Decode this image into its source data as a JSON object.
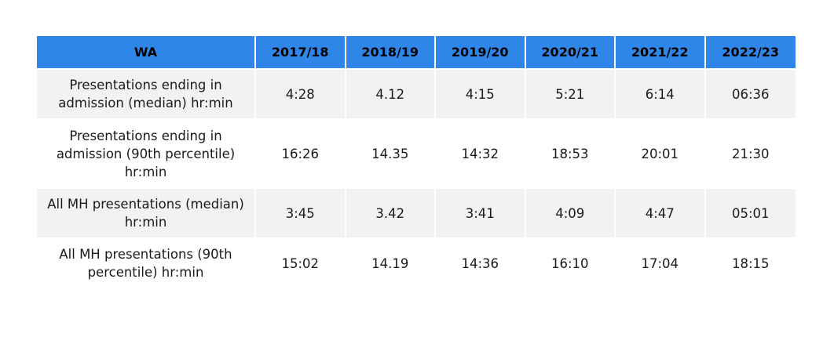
{
  "table": {
    "header": {
      "label": "WA",
      "years": [
        "2017/18",
        "2018/19",
        "2019/20",
        "2020/21",
        "2021/22",
        "2022/23"
      ]
    },
    "rows": [
      {
        "label": "Presentations ending in admission (median) hr:min",
        "values": [
          "4:28",
          "4.12",
          "4:15",
          "5:21",
          "6:14",
          "06:36"
        ]
      },
      {
        "label": "Presentations ending in admission (90th percentile) hr:min",
        "values": [
          "16:26",
          "14.35",
          "14:32",
          "18:53",
          "20:01",
          "21:30"
        ]
      },
      {
        "label": "All MH presentations (median) hr:min",
        "values": [
          "3:45",
          "3.42",
          "3:41",
          "4:09",
          "4:47",
          "05:01"
        ]
      },
      {
        "label": "All MH presentations (90th percentile) hr:min",
        "values": [
          "15:02",
          "14.19",
          "14:36",
          "16:10",
          "17:04",
          "18:15"
        ]
      }
    ]
  },
  "colors": {
    "header_bg": "#2e86e8",
    "shaded_row_bg": "#f2f2f2"
  }
}
